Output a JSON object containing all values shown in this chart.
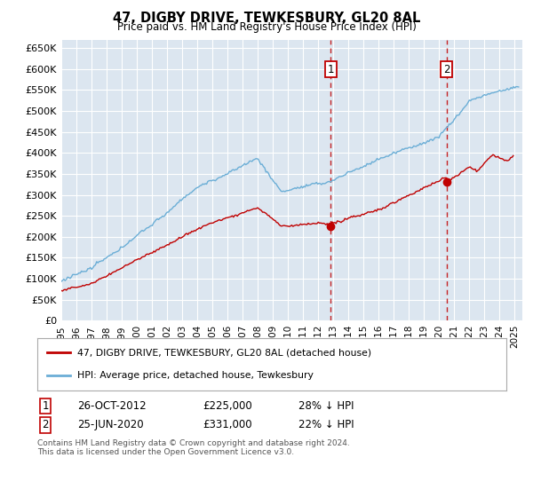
{
  "title": "47, DIGBY DRIVE, TEWKESBURY, GL20 8AL",
  "subtitle": "Price paid vs. HM Land Registry's House Price Index (HPI)",
  "yticks": [
    0,
    50000,
    100000,
    150000,
    200000,
    250000,
    300000,
    350000,
    400000,
    450000,
    500000,
    550000,
    600000,
    650000
  ],
  "ylim": [
    0,
    670000
  ],
  "xlim_start": 1995.0,
  "xlim_end": 2025.5,
  "background_color": "#ffffff",
  "plot_bg_color": "#dce6f0",
  "grid_color": "#ffffff",
  "hpi_color": "#6baed6",
  "price_color": "#c00000",
  "transaction1": {
    "date_num": 2012.82,
    "price": 225000,
    "label": "1",
    "date_str": "26-OCT-2012"
  },
  "transaction2": {
    "date_num": 2020.49,
    "price": 331000,
    "label": "2",
    "date_str": "25-JUN-2020"
  },
  "legend_line1": "47, DIGBY DRIVE, TEWKESBURY, GL20 8AL (detached house)",
  "legend_line2": "HPI: Average price, detached house, Tewkesbury",
  "footnote1": "Contains HM Land Registry data © Crown copyright and database right 2024.",
  "footnote2": "This data is licensed under the Open Government Licence v3.0.",
  "table_row1": [
    "1",
    "26-OCT-2012",
    "£225,000",
    "28% ↓ HPI"
  ],
  "table_row2": [
    "2",
    "25-JUN-2020",
    "£331,000",
    "22% ↓ HPI"
  ]
}
